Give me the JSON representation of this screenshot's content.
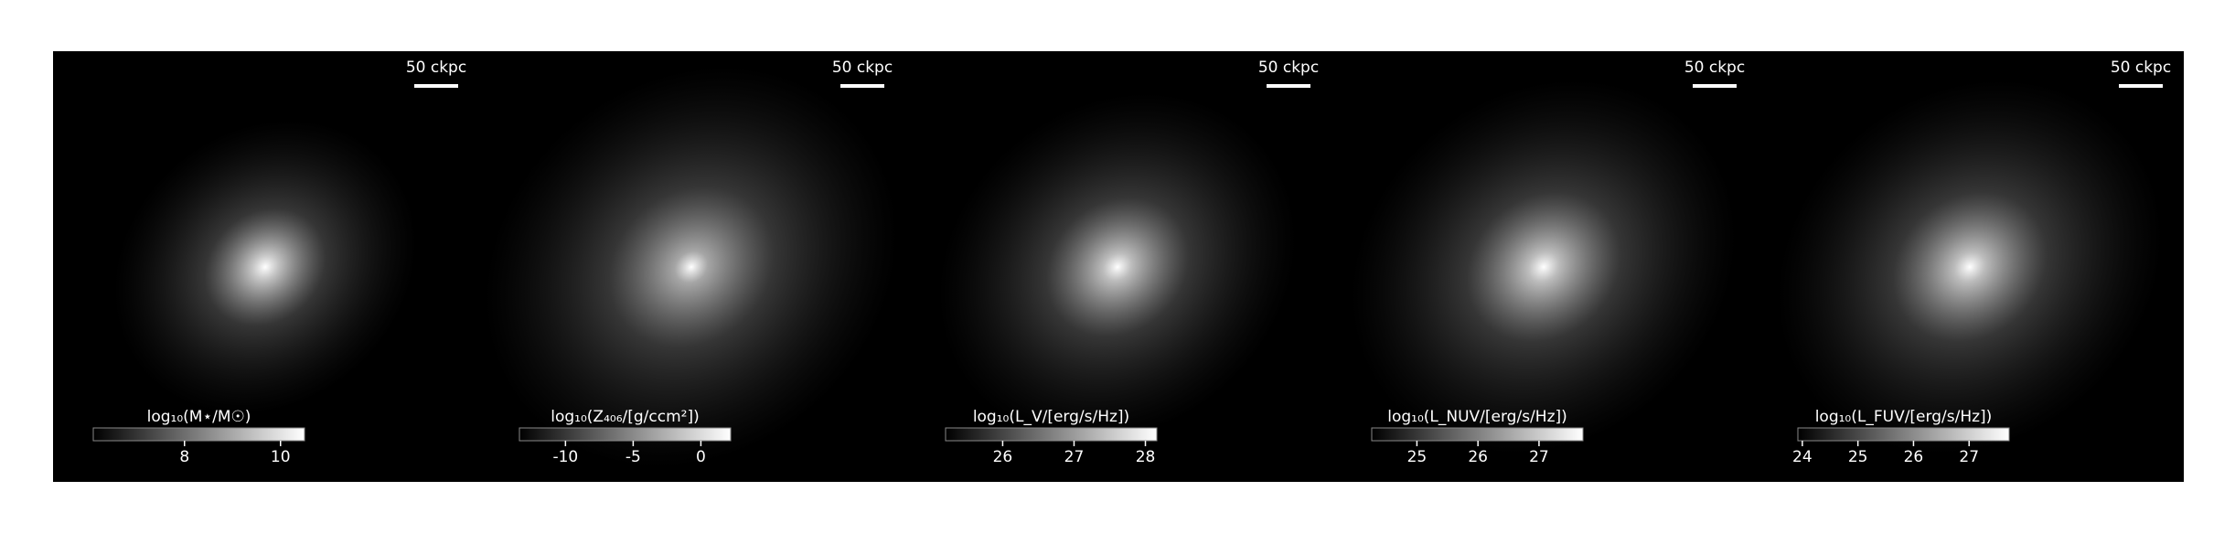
{
  "chart_data": {
    "type": "image-grid",
    "panels": [
      {
        "scale_label": "50 ckpc",
        "colorbar_label": "log₁₀(M⋆/M☉)",
        "clim": [
          6.1,
          10.5
        ],
        "cticks": [
          8,
          10
        ],
        "brightness": 0.9,
        "spread": 0.35
      },
      {
        "scale_label": "50 ckpc",
        "colorbar_label": "log₁₀(Z₄₀₆/[g/ccm²])",
        "clim": [
          -13.4,
          2.2
        ],
        "cticks": [
          -10,
          -5,
          0
        ],
        "brightness": 0.75,
        "spread": 0.75
      },
      {
        "scale_label": "50 ckpc",
        "colorbar_label": "log₁₀(L_V/[erg/s/Hz])",
        "clim": [
          25.2,
          28.16
        ],
        "cticks": [
          26,
          27,
          28
        ],
        "brightness": 0.85,
        "spread": 0.55
      },
      {
        "scale_label": "50 ckpc",
        "colorbar_label": "log₁₀(L_NUV/[erg/s/Hz])",
        "clim": [
          24.26,
          27.72
        ],
        "cticks": [
          25,
          26,
          27
        ],
        "brightness": 0.85,
        "spread": 0.65
      },
      {
        "scale_label": "50 ckpc",
        "colorbar_label": "log₁₀(L_FUV/[erg/s/Hz])",
        "clim": [
          23.92,
          27.72
        ],
        "cticks": [
          24,
          25,
          26,
          27
        ],
        "brightness": 0.85,
        "spread": 0.65
      }
    ]
  }
}
